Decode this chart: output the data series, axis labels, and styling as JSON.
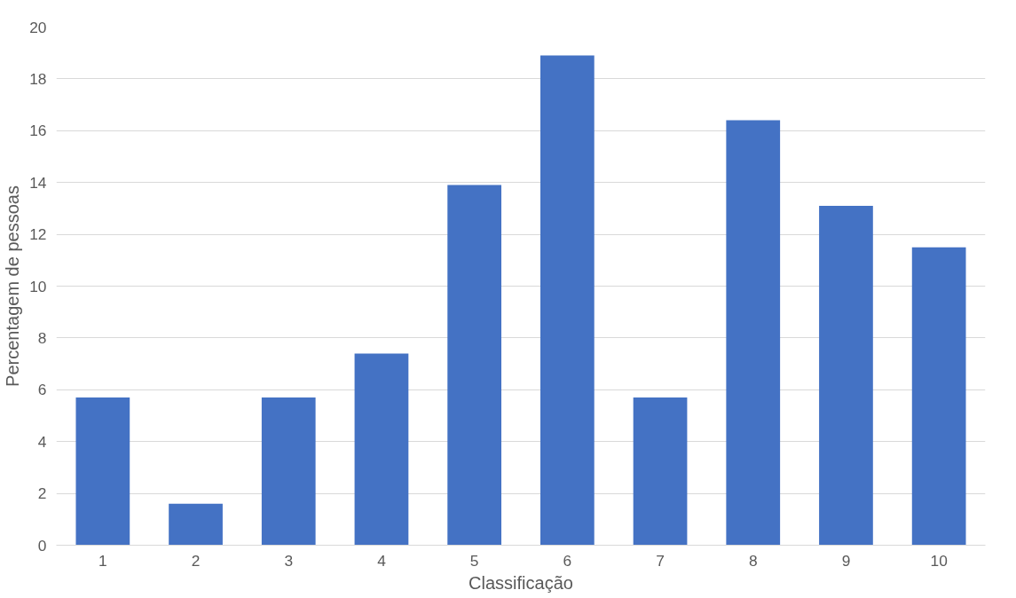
{
  "chart_data": {
    "type": "bar",
    "xlabel": "Classificação",
    "ylabel": "Percentagem de pessoas",
    "categories": [
      "1",
      "2",
      "3",
      "4",
      "5",
      "6",
      "7",
      "8",
      "9",
      "10"
    ],
    "values": [
      5.7,
      1.6,
      5.7,
      7.4,
      13.9,
      18.9,
      5.7,
      16.4,
      13.1,
      11.5
    ],
    "color": "#4472c4",
    "ylim": [
      0,
      20
    ],
    "yticks": [
      0,
      2,
      4,
      6,
      8,
      10,
      12,
      14,
      16,
      18,
      20
    ],
    "grid": "y"
  }
}
